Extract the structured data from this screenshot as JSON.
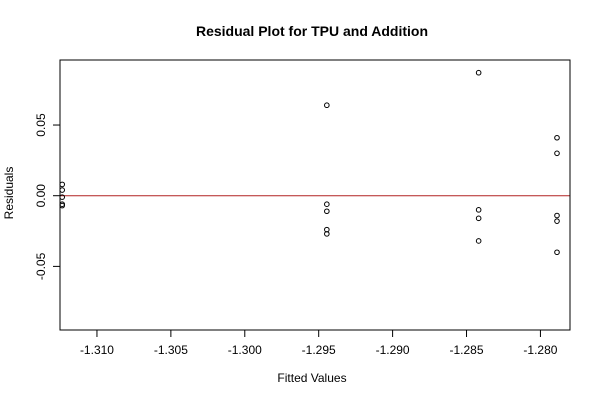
{
  "chart_data": {
    "type": "scatter",
    "title": "Residual Plot for TPU and Addition",
    "xlabel": "Fitted Values",
    "ylabel": "Residuals",
    "xlim": [
      -1.3125,
      -1.278
    ],
    "ylim": [
      -0.095,
      0.096
    ],
    "x_ticks": [
      -1.31,
      -1.305,
      -1.3,
      -1.295,
      -1.29,
      -1.285,
      -1.28
    ],
    "x_tick_labels": [
      "-1.310",
      "-1.305",
      "-1.300",
      "-1.295",
      "-1.290",
      "-1.285",
      "-1.280"
    ],
    "y_ticks": [
      -0.05,
      0.0,
      0.05
    ],
    "y_tick_labels": [
      "-0.05",
      "0.00",
      "0.05"
    ],
    "grid": false,
    "reference_line": {
      "y": 0,
      "color": "#b22222"
    },
    "points": [
      {
        "x": -1.31235,
        "y": 0.008
      },
      {
        "x": -1.31235,
        "y": 0.004
      },
      {
        "x": -1.31235,
        "y": -0.001
      },
      {
        "x": -1.31235,
        "y": -0.006
      },
      {
        "x": -1.31235,
        "y": -0.007
      },
      {
        "x": -1.29445,
        "y": 0.064
      },
      {
        "x": -1.29445,
        "y": -0.006
      },
      {
        "x": -1.29445,
        "y": -0.011
      },
      {
        "x": -1.29445,
        "y": -0.024
      },
      {
        "x": -1.29445,
        "y": -0.027
      },
      {
        "x": -1.28418,
        "y": 0.087
      },
      {
        "x": -1.28418,
        "y": -0.01
      },
      {
        "x": -1.28418,
        "y": -0.016
      },
      {
        "x": -1.28418,
        "y": -0.032
      },
      {
        "x": -1.27888,
        "y": 0.041
      },
      {
        "x": -1.27888,
        "y": 0.03
      },
      {
        "x": -1.27888,
        "y": -0.014
      },
      {
        "x": -1.27888,
        "y": -0.018
      },
      {
        "x": -1.27888,
        "y": -0.04
      }
    ]
  }
}
